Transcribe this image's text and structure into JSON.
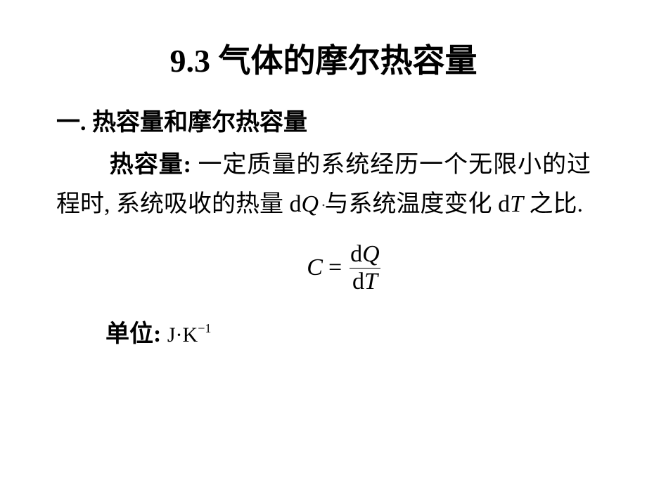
{
  "title": "9.3 气体的摩尔热容量",
  "section_heading": "一. 热容量和摩尔热容量",
  "body": {
    "term": "热容量:",
    "part1": " 一定质量的系统经历一个无限小的过程时, 系统吸收的热量 ",
    "dQ_d": "d",
    "dQ_Q": "Q",
    "part2": " 与系统温度变化 ",
    "dT_d": "d",
    "dT_T": "T",
    "part3": " 之比."
  },
  "center_mark": "•",
  "formula": {
    "C": "C",
    "eq": "=",
    "num_d": "d",
    "num_Q": "Q",
    "den_d": "d",
    "den_T": "T"
  },
  "unit": {
    "label": "单位:",
    "J": "J",
    "dot": "·",
    "K": "K",
    "exp": "−1"
  },
  "style": {
    "bg": "#ffffff",
    "text": "#000000",
    "title_fontsize": 46,
    "heading_fontsize": 34,
    "body_fontsize": 34,
    "formula_fontsize": 34,
    "unit_fontsize": 30
  }
}
